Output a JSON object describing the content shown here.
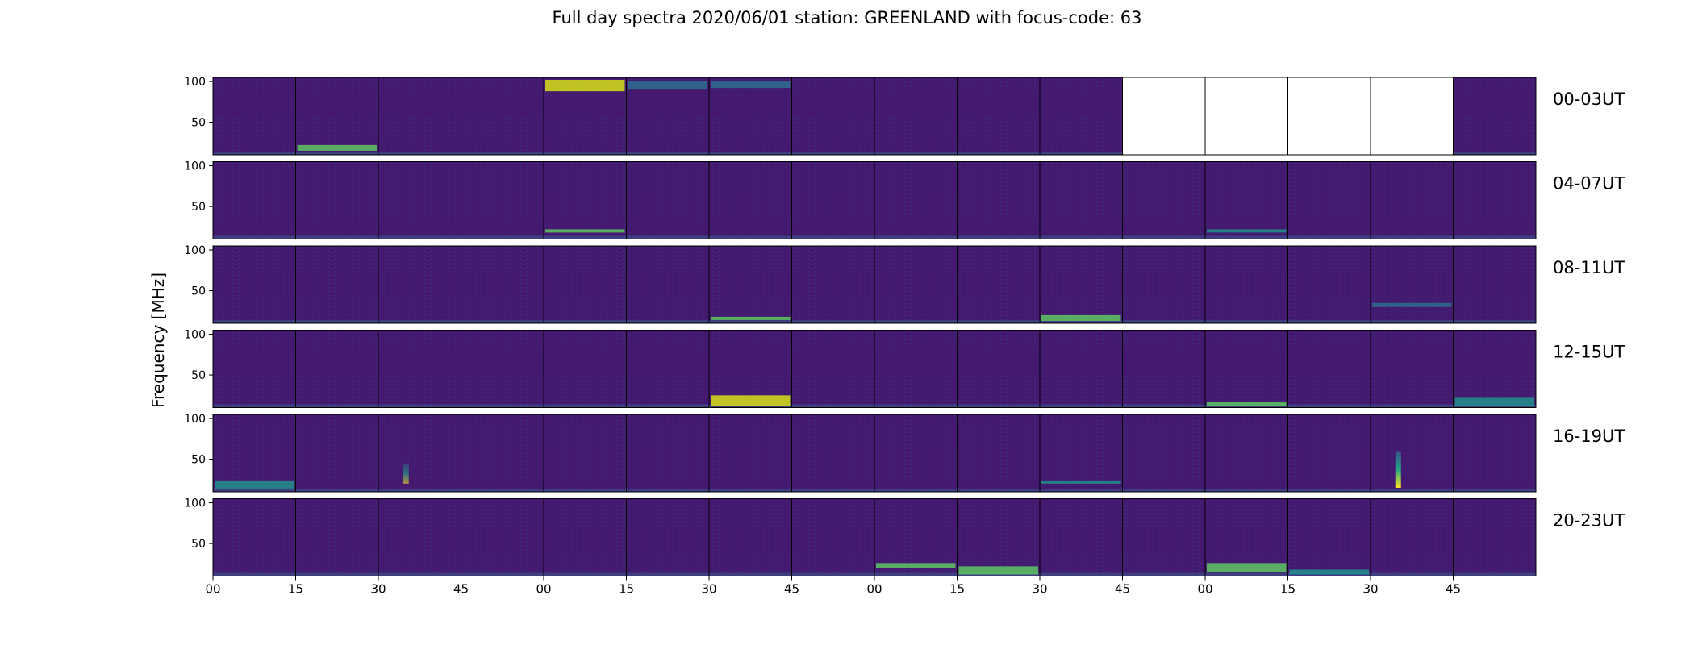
{
  "title": "Full day spectra 2020/06/01 station: GREENLAND with focus-code: 63",
  "chart_data": {
    "type": "heatmap",
    "title": "Full day spectra 2020/06/01 station: GREENLAND with focus-code: 63",
    "ylabel": "Frequency [MHz]",
    "xlabel": "",
    "ylim": [
      10,
      105
    ],
    "yticks": [
      50,
      100
    ],
    "xtick_labels": [
      "00",
      "15",
      "30",
      "45",
      "00",
      "15",
      "30",
      "45",
      "00",
      "15",
      "30",
      "45",
      "00",
      "15",
      "30",
      "45"
    ],
    "colormap": "viridis",
    "panels_per_row": 16,
    "panel_minutes": 15,
    "rows": [
      {
        "label": "00-03UT",
        "missing_panels": [
          11,
          12,
          13,
          14
        ]
      },
      {
        "label": "04-07UT",
        "missing_panels": []
      },
      {
        "label": "08-11UT",
        "missing_panels": []
      },
      {
        "label": "12-15UT",
        "missing_panels": []
      },
      {
        "label": "16-19UT",
        "missing_panels": []
      },
      {
        "label": "20-23UT",
        "missing_panels": []
      }
    ],
    "features": [
      {
        "row": 0,
        "panel": 1,
        "kind": "band",
        "f_low": 15,
        "f_high": 22,
        "intensity": 0.8
      },
      {
        "row": 0,
        "panel": 4,
        "kind": "band",
        "f_low": 88,
        "f_high": 102,
        "intensity": 0.9
      },
      {
        "row": 0,
        "panel": 5,
        "kind": "band",
        "f_low": 90,
        "f_high": 101,
        "intensity": 0.5
      },
      {
        "row": 0,
        "panel": 6,
        "kind": "band",
        "f_low": 92,
        "f_high": 101,
        "intensity": 0.5
      },
      {
        "row": 1,
        "panel": 4,
        "kind": "band",
        "f_low": 18,
        "f_high": 22,
        "intensity": 0.7
      },
      {
        "row": 1,
        "panel": 12,
        "kind": "band",
        "f_low": 18,
        "f_high": 22,
        "intensity": 0.6
      },
      {
        "row": 2,
        "panel": 6,
        "kind": "band",
        "f_low": 14,
        "f_high": 18,
        "intensity": 0.7
      },
      {
        "row": 2,
        "panel": 10,
        "kind": "band",
        "f_low": 13,
        "f_high": 20,
        "intensity": 0.8
      },
      {
        "row": 2,
        "panel": 14,
        "kind": "band",
        "f_low": 30,
        "f_high": 35,
        "intensity": 0.4
      },
      {
        "row": 3,
        "panel": 6,
        "kind": "band",
        "f_low": 12,
        "f_high": 25,
        "intensity": 1.0
      },
      {
        "row": 3,
        "panel": 12,
        "kind": "band",
        "f_low": 12,
        "f_high": 17,
        "intensity": 0.8
      },
      {
        "row": 3,
        "panel": 15,
        "kind": "band",
        "f_low": 12,
        "f_high": 22,
        "intensity": 0.6
      },
      {
        "row": 4,
        "panel": 0,
        "kind": "band",
        "f_low": 14,
        "f_high": 24,
        "intensity": 0.6
      },
      {
        "row": 4,
        "panel": 2,
        "kind": "burst",
        "f_low": 20,
        "f_high": 45,
        "intensity": 0.6
      },
      {
        "row": 4,
        "panel": 14,
        "kind": "burst",
        "f_low": 15,
        "f_high": 60,
        "intensity": 1.0
      },
      {
        "row": 4,
        "panel": 10,
        "kind": "band",
        "f_low": 20,
        "f_high": 24,
        "intensity": 0.6
      },
      {
        "row": 5,
        "panel": 8,
        "kind": "band",
        "f_low": 20,
        "f_high": 26,
        "intensity": 0.7
      },
      {
        "row": 5,
        "panel": 9,
        "kind": "band",
        "f_low": 12,
        "f_high": 22,
        "intensity": 0.7
      },
      {
        "row": 5,
        "panel": 12,
        "kind": "band",
        "f_low": 15,
        "f_high": 26,
        "intensity": 0.8
      },
      {
        "row": 5,
        "panel": 13,
        "kind": "band",
        "f_low": 12,
        "f_high": 18,
        "intensity": 0.6
      }
    ]
  }
}
